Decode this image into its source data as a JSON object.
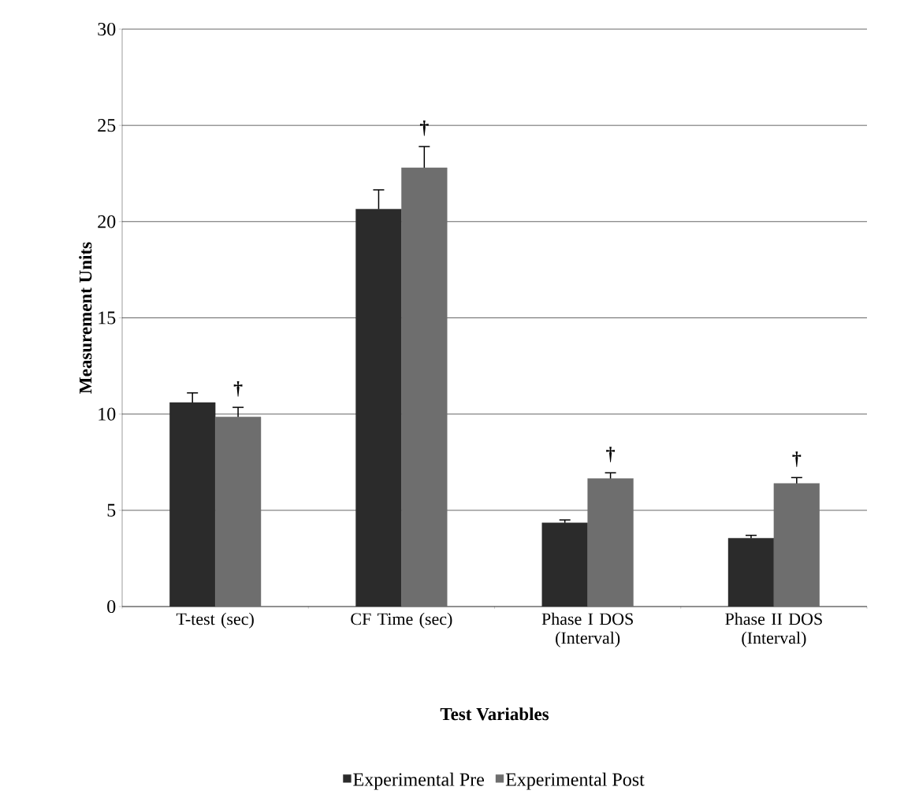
{
  "chart_data": {
    "type": "bar",
    "xlabel": "Test Variables",
    "ylabel": "Measurement Units",
    "categories": [
      "T-test (sec)",
      "CF Time (sec)",
      "Phase I DOS (Interval)",
      "Phase II DOS (Interval)"
    ],
    "series": [
      {
        "name": "Experimental Pre",
        "color": "#2b2b2b",
        "values": [
          10.6,
          20.65,
          4.35,
          3.55
        ],
        "errors": [
          0.5,
          1.0,
          0.15,
          0.15
        ]
      },
      {
        "name": "Experimental Post",
        "color": "#6e6e6e",
        "values": [
          9.85,
          22.8,
          6.65,
          6.4
        ],
        "errors": [
          0.5,
          1.1,
          0.3,
          0.3
        ]
      }
    ],
    "ylim": [
      0,
      30
    ],
    "yticks": [
      0,
      5,
      10,
      15,
      20,
      25,
      30
    ],
    "grid": "y",
    "legend": "bottom",
    "annotations": [
      "†",
      "†",
      "†",
      "†"
    ]
  }
}
